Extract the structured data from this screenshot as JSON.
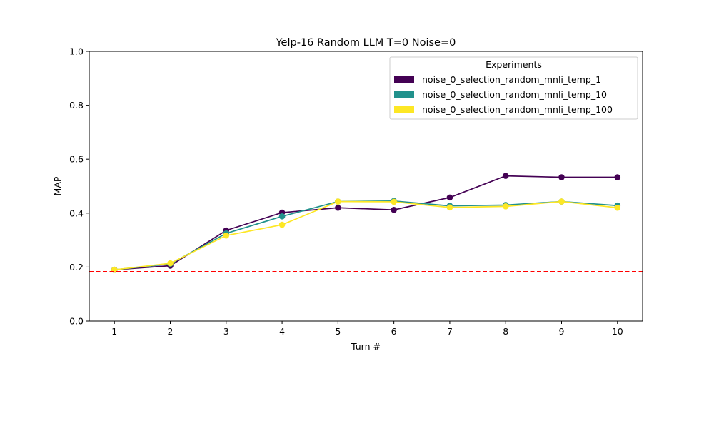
{
  "chart_data": {
    "type": "line",
    "title": "Yelp-16 Random LLM T=0 Noise=0",
    "xlabel": "Turn #",
    "ylabel": "MAP",
    "x": [
      1,
      2,
      3,
      4,
      5,
      6,
      7,
      8,
      9,
      10
    ],
    "xlim": [
      0.55,
      10.45
    ],
    "ylim": [
      0.0,
      1.0
    ],
    "yticks": [
      0.0,
      0.2,
      0.4,
      0.6,
      0.8,
      1.0
    ],
    "ytick_labels": [
      "0.0",
      "0.2",
      "0.4",
      "0.6",
      "0.8",
      "1.0"
    ],
    "grid": false,
    "legend": {
      "title": "Experiments",
      "position": "upper-right"
    },
    "series": [
      {
        "name": "noise_0_selection_random_mnli_temp_1",
        "color": "#440154",
        "values": [
          0.19,
          0.205,
          0.336,
          0.402,
          0.42,
          0.412,
          0.458,
          0.538,
          0.533,
          0.533
        ]
      },
      {
        "name": "noise_0_selection_random_mnli_temp_10",
        "color": "#21918c",
        "values": [
          0.19,
          0.212,
          0.325,
          0.388,
          0.443,
          0.445,
          0.427,
          0.43,
          0.443,
          0.428
        ]
      },
      {
        "name": "noise_0_selection_random_mnli_temp_100",
        "color": "#fde725",
        "values": [
          0.19,
          0.214,
          0.317,
          0.357,
          0.443,
          0.442,
          0.421,
          0.425,
          0.443,
          0.42
        ]
      }
    ],
    "baseline": {
      "value": 0.183,
      "color": "#ff0000",
      "style": "dashed"
    }
  }
}
